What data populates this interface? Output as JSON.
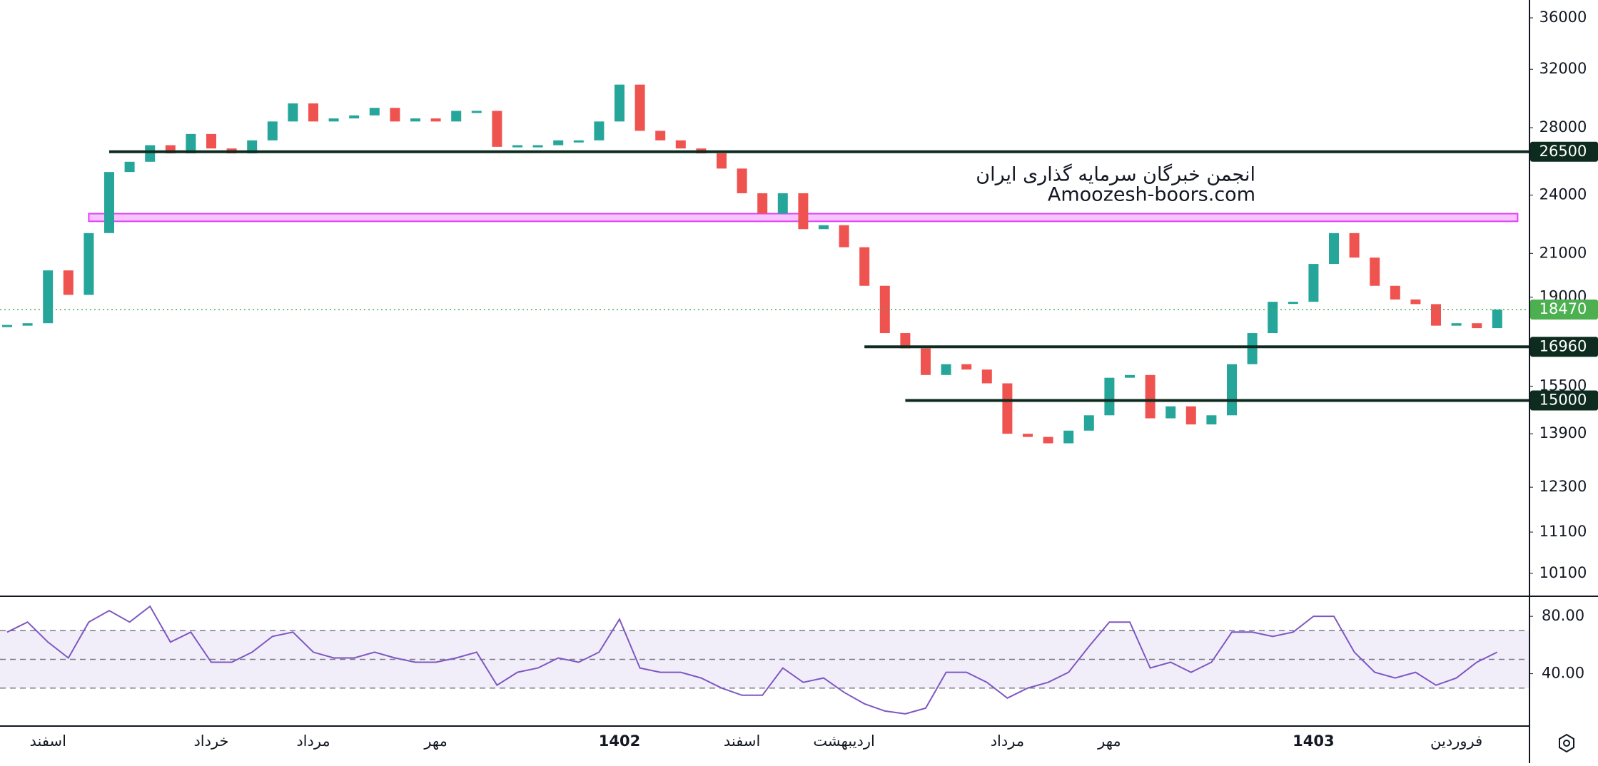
{
  "chart_data": [
    {
      "type": "candlestick",
      "categories": [
        null,
        null,
        "اسفند",
        null,
        null,
        null,
        null,
        null,
        null,
        null,
        "خرداد",
        null,
        null,
        null,
        null,
        "مرداد",
        null,
        null,
        null,
        null,
        null,
        "مهر",
        null,
        null,
        null,
        null,
        null,
        null,
        null,
        null,
        "1402",
        null,
        null,
        null,
        null,
        null,
        "اسفند",
        null,
        null,
        null,
        null,
        "اردیبهشت",
        null,
        null,
        null,
        null,
        null,
        null,
        null,
        "مرداد",
        null,
        null,
        null,
        null,
        "مهر",
        null,
        null,
        null,
        null,
        null,
        null,
        null,
        null,
        null,
        "1403",
        null,
        null,
        null,
        null,
        null,
        null,
        "فروردین",
        null,
        null
      ],
      "values": [
        17800,
        17900,
        20200,
        19100,
        22000,
        25300,
        25900,
        26900,
        26400,
        27600,
        26700,
        26400,
        27200,
        28400,
        29600,
        28400,
        28600,
        28800,
        29300,
        28400,
        28600,
        28400,
        29100,
        29100,
        26800,
        26900,
        26900,
        27200,
        27200,
        28400,
        30900,
        27800,
        27200,
        26700,
        26400,
        25500,
        24100,
        23000,
        24100,
        22200,
        22400,
        21300,
        19500,
        17500,
        16900,
        15900,
        16300,
        16100,
        15600,
        13900,
        13800,
        13600,
        14000,
        14500,
        15800,
        15900,
        14400,
        14800,
        14200,
        14500,
        16300,
        17500,
        18800,
        18800,
        20500,
        22000,
        20800,
        19500,
        18900,
        18700,
        17800,
        17900,
        17700,
        18470
      ],
      "up_color": "#26a69a",
      "down_color": "#ef5350",
      "last_color": "#4caf50",
      "log_scale": true,
      "ylim": [
        9600,
        37500
      ],
      "yticks": [
        10100,
        11100,
        12300,
        13900,
        15500,
        19000,
        21000,
        24000,
        28000,
        32000,
        36000
      ],
      "levels": [
        {
          "value": 26500,
          "start": 5,
          "color": "#0d2b1f"
        },
        {
          "value": 16960,
          "start": 42,
          "color": "#0d2b1f"
        },
        {
          "value": 15000,
          "start": 44,
          "color": "#0d2b1f"
        }
      ],
      "zone": {
        "low": 22600,
        "high": 23000,
        "start": 4,
        "end": 74,
        "color": "#e040fb"
      },
      "annotations": [
        "انجمن خبرگان سرمایه گذاری ایران",
        "Amoozesh-boors.com"
      ]
    },
    {
      "type": "line",
      "values": [
        69,
        76,
        62,
        51,
        76,
        84,
        76,
        87,
        62,
        69,
        48,
        48,
        55,
        66,
        69,
        55,
        51,
        51,
        55,
        51,
        48,
        48,
        51,
        55,
        32,
        41,
        44,
        51,
        48,
        55,
        78,
        44,
        41,
        41,
        37,
        30,
        25,
        25,
        44,
        34,
        37,
        27,
        19,
        14,
        12,
        16,
        41,
        41,
        34,
        23,
        30,
        34,
        41,
        59,
        76,
        76,
        44,
        48,
        41,
        48,
        69,
        69,
        66,
        69,
        80,
        80,
        55,
        41,
        37,
        41,
        32,
        37,
        48,
        55
      ],
      "color": "#7e57c2",
      "ylim": [
        4,
        93
      ],
      "yticks": [
        {
          "value": 40,
          "label": "40.00"
        },
        {
          "value": 80,
          "label": "80.00"
        }
      ],
      "bands": [
        30,
        50,
        70
      ]
    }
  ]
}
